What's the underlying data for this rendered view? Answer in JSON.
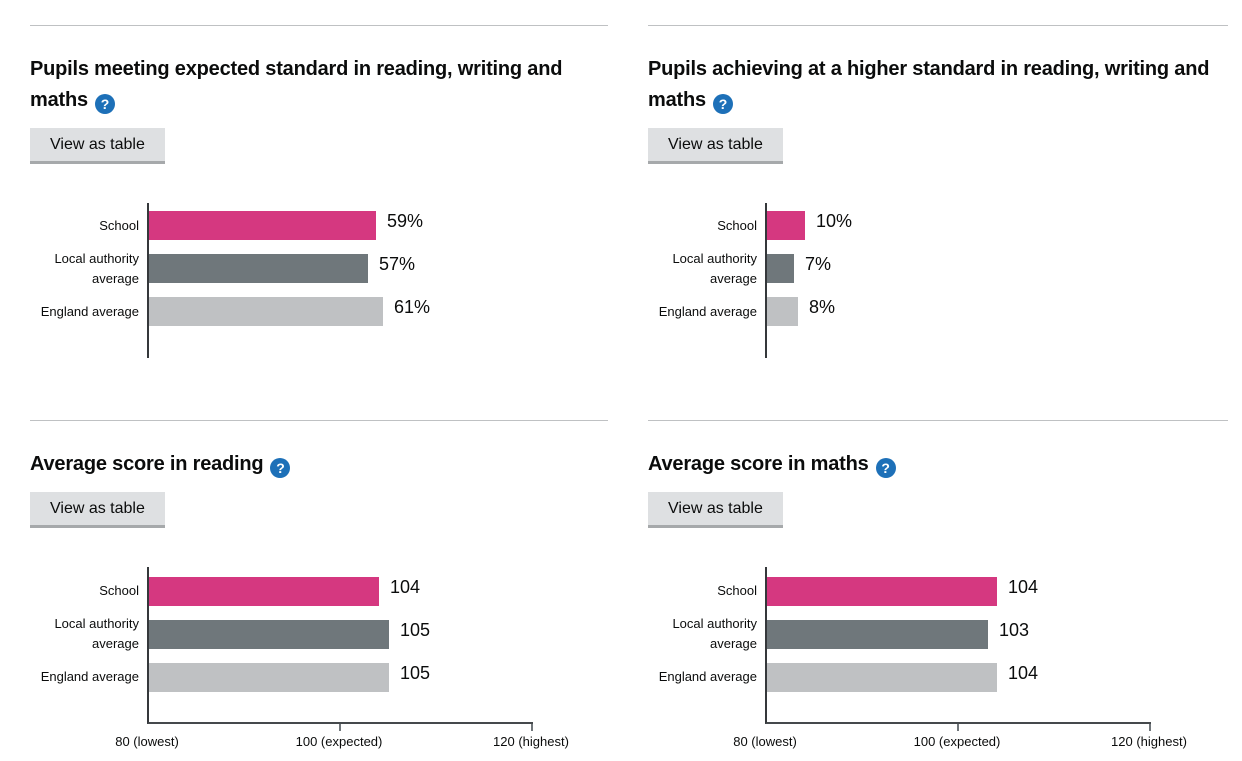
{
  "ui": {
    "view_as_table": "View as table",
    "help_icon_glyph": "?"
  },
  "series_colors": [
    "#d53880",
    "#6f777b",
    "#bfc1c3"
  ],
  "accent_colors": {
    "help_icon_blue": "#1d70b8",
    "button_grey": "#dee0e2",
    "divider_grey": "#bfc1c3"
  },
  "chart_data": [
    {
      "type": "bar",
      "orientation": "horizontal",
      "title": "Pupils meeting expected standard in reading, writing and maths",
      "categories": [
        "School",
        "Local authority average",
        "England average"
      ],
      "values": [
        59,
        57,
        61
      ],
      "value_labels": [
        "59%",
        "57%",
        "61%"
      ],
      "xlim": [
        0,
        100
      ],
      "axis_ticks": []
    },
    {
      "type": "bar",
      "orientation": "horizontal",
      "title": "Pupils achieving at a higher standard in reading, writing and maths",
      "categories": [
        "School",
        "Local authority average",
        "England average"
      ],
      "values": [
        10,
        7,
        8
      ],
      "value_labels": [
        "10%",
        "7%",
        "8%"
      ],
      "xlim": [
        0,
        100
      ],
      "axis_ticks": []
    },
    {
      "type": "bar",
      "orientation": "horizontal",
      "title": "Average score in reading",
      "categories": [
        "School",
        "Local authority average",
        "England average"
      ],
      "values": [
        104,
        105,
        105
      ],
      "value_labels": [
        "104",
        "105",
        "105"
      ],
      "xlim": [
        80,
        120
      ],
      "axis_ticks": [
        {
          "value": 80,
          "label": "80 (lowest)"
        },
        {
          "value": 100,
          "label": "100 (expected)"
        },
        {
          "value": 120,
          "label": "120 (highest)"
        }
      ]
    },
    {
      "type": "bar",
      "orientation": "horizontal",
      "title": "Average score in maths",
      "categories": [
        "School",
        "Local authority average",
        "England average"
      ],
      "values": [
        104,
        103,
        104
      ],
      "value_labels": [
        "104",
        "103",
        "104"
      ],
      "xlim": [
        80,
        120
      ],
      "axis_ticks": [
        {
          "value": 80,
          "label": "80 (lowest)"
        },
        {
          "value": 100,
          "label": "100 (expected)"
        },
        {
          "value": 120,
          "label": "120 (highest)"
        }
      ]
    }
  ]
}
